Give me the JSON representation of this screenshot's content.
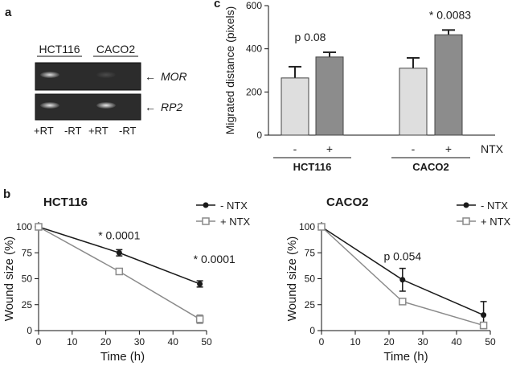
{
  "panel_labels": {
    "a": "a",
    "b": "b",
    "c": "c"
  },
  "gel": {
    "cell_lines": [
      "HCT116",
      "CACO2"
    ],
    "rows": [
      {
        "label": "MOR",
        "bands": [
          0.85,
          0,
          0.15,
          0
        ]
      },
      {
        "label": "RP2",
        "bands": [
          0.9,
          0,
          0.9,
          0
        ]
      }
    ],
    "lanes": [
      "+RT",
      "-RT",
      "+RT",
      "-RT"
    ],
    "arrow": "←"
  },
  "chart_data": [
    {
      "type": "bar",
      "id": "migration",
      "ylabel": "Migrated distance (pixels)",
      "ylim": [
        0,
        600
      ],
      "yticks": [
        0,
        200,
        400,
        600
      ],
      "groups": [
        {
          "name": "HCT116",
          "categories": [
            "-",
            "+"
          ],
          "values": [
            265,
            362
          ],
          "errors": [
            52,
            22
          ],
          "annotation": "p 0.08"
        },
        {
          "name": "CACO2",
          "categories": [
            "-",
            "+"
          ],
          "values": [
            310,
            465
          ],
          "errors": [
            48,
            22
          ],
          "annotation": "* 0.0083"
        }
      ],
      "treatment_label": "NTX",
      "colors": {
        "minus": "#dedede",
        "plus": "#8c8c8c"
      }
    },
    {
      "type": "line",
      "id": "hct116-wound",
      "title": "HCT116",
      "xlabel": "Time (h)",
      "ylabel": "Wound size (%)",
      "xlim": [
        0,
        50
      ],
      "ylim": [
        0,
        100
      ],
      "xticks": [
        0,
        10,
        20,
        30,
        40,
        50
      ],
      "yticks": [
        0,
        25,
        50,
        75,
        100
      ],
      "x": [
        0,
        24,
        48
      ],
      "series": [
        {
          "name": "- NTX",
          "values": [
            100,
            75,
            45
          ],
          "errors": [
            0,
            3,
            3
          ],
          "color": "#1a1a1a",
          "marker": "circle"
        },
        {
          "name": "+ NTX",
          "values": [
            100,
            57,
            11
          ],
          "errors": [
            0,
            1.5,
            4
          ],
          "color": "#8a8a8a",
          "marker": "square"
        }
      ],
      "annotations": [
        {
          "text": "* 0.0001",
          "x": 24,
          "y": 88
        },
        {
          "text": "* 0.0001",
          "x": 48,
          "y": 65
        }
      ]
    },
    {
      "type": "line",
      "id": "caco2-wound",
      "title": "CACO2",
      "xlabel": "Time (h)",
      "ylabel": "Wound size (%)",
      "xlim": [
        0,
        50
      ],
      "ylim": [
        0,
        100
      ],
      "xticks": [
        0,
        10,
        20,
        30,
        40,
        50
      ],
      "yticks": [
        0,
        25,
        50,
        75,
        100
      ],
      "x": [
        0,
        24,
        48
      ],
      "series": [
        {
          "name": "- NTX",
          "values": [
            100,
            49,
            15
          ],
          "errors": [
            0,
            11,
            13
          ],
          "color": "#1a1a1a",
          "marker": "circle"
        },
        {
          "name": "+ NTX",
          "values": [
            100,
            28,
            5
          ],
          "errors": [
            0,
            2,
            3
          ],
          "color": "#8a8a8a",
          "marker": "square"
        }
      ],
      "annotations": [
        {
          "text": "p 0.054",
          "x": 24,
          "y": 68
        }
      ]
    }
  ]
}
